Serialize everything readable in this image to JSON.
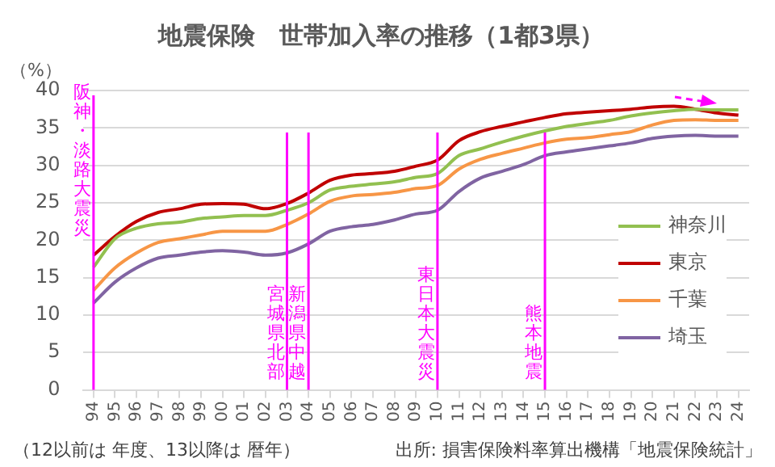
{
  "chart_data": {
    "type": "line",
    "title": "地震保険　世帯加入率の推移（1都3県）",
    "ylabel": "（%）",
    "categories": [
      "94",
      "95",
      "96",
      "97",
      "98",
      "99",
      "00",
      "01",
      "02",
      "03",
      "04",
      "05",
      "06",
      "07",
      "08",
      "09",
      "10",
      "11",
      "12",
      "13",
      "14",
      "15",
      "16",
      "17",
      "18",
      "19",
      "20",
      "21",
      "22",
      "23",
      "24"
    ],
    "series": [
      {
        "name": "神奈川",
        "color": "#92c050",
        "values": [
          16.4,
          20.2,
          21.6,
          22.2,
          22.4,
          22.9,
          23.1,
          23.3,
          23.3,
          24.0,
          25.0,
          26.7,
          27.2,
          27.5,
          27.8,
          28.4,
          28.9,
          31.3,
          32.2,
          33.1,
          33.9,
          34.6,
          35.2,
          35.6,
          36.0,
          36.6,
          37.0,
          37.3,
          37.5,
          37.4,
          37.4
        ]
      },
      {
        "name": "東京",
        "color": "#c00000",
        "values": [
          18.0,
          20.5,
          22.5,
          23.7,
          24.2,
          24.8,
          24.9,
          24.8,
          24.2,
          24.9,
          26.3,
          28.0,
          28.7,
          28.9,
          29.2,
          29.9,
          30.7,
          33.3,
          34.5,
          35.2,
          35.8,
          36.4,
          36.9,
          37.1,
          37.3,
          37.5,
          37.8,
          37.9,
          37.5,
          37.0,
          36.7
        ]
      },
      {
        "name": "千葉",
        "color": "#f79646",
        "values": [
          13.3,
          16.3,
          18.3,
          19.7,
          20.2,
          20.7,
          21.2,
          21.2,
          21.2,
          22.1,
          23.5,
          25.2,
          25.9,
          26.1,
          26.4,
          26.9,
          27.3,
          29.5,
          30.8,
          31.6,
          32.3,
          33.0,
          33.5,
          33.7,
          34.1,
          34.5,
          35.4,
          36.0,
          36.1,
          36.0,
          36.0
        ]
      },
      {
        "name": "埼玉",
        "color": "#8064a2",
        "values": [
          11.6,
          14.4,
          16.3,
          17.6,
          18.0,
          18.4,
          18.6,
          18.4,
          18.0,
          18.3,
          19.5,
          21.2,
          21.8,
          22.1,
          22.7,
          23.5,
          24.0,
          26.5,
          28.3,
          29.2,
          30.1,
          31.3,
          31.8,
          32.2,
          32.6,
          33.0,
          33.6,
          33.9,
          34.0,
          33.9,
          33.9
        ]
      }
    ],
    "ylim": [
      0,
      40
    ],
    "yticks": [
      0,
      5,
      10,
      15,
      20,
      25,
      30,
      35,
      40
    ],
    "grid": "y",
    "legend": "right",
    "marker": "none",
    "line_style": "solid",
    "ref_lines": [
      {
        "axis": "x",
        "value": "94",
        "label": "阪神・淡路大震災",
        "color": "#ff00ff"
      },
      {
        "axis": "x",
        "value": "03",
        "label": "宮城県北部",
        "color": "#ff00ff"
      },
      {
        "axis": "x",
        "value": "04",
        "label": "新潟県中越",
        "color": "#ff00ff"
      },
      {
        "axis": "x",
        "value": "10",
        "label": "東日本大震災",
        "color": "#ff00ff"
      },
      {
        "axis": "x",
        "value": "15",
        "label": "熊本地震",
        "color": "#ff00ff"
      }
    ],
    "annotations": [
      "（12以前は 年度、13以降は 暦年）",
      "出所: 損害保険料率算出機構「地震保険統計」"
    ]
  }
}
